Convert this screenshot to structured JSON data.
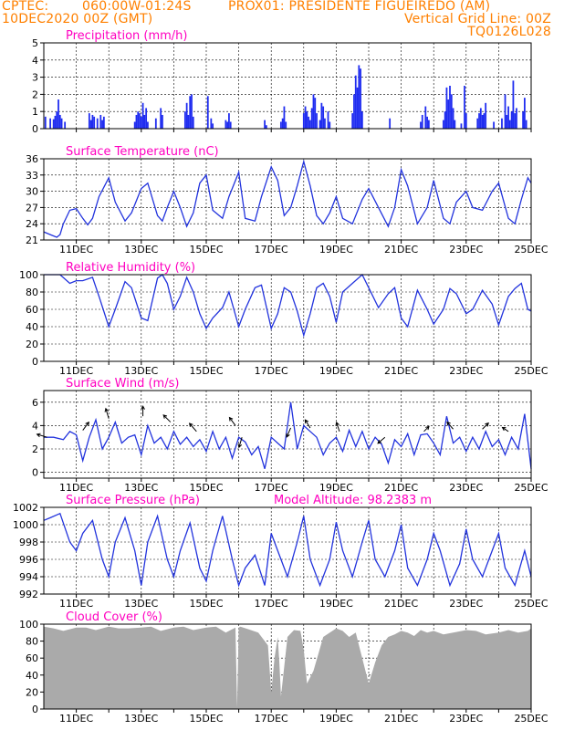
{
  "header": {
    "line1_left": "CPTEC:",
    "line1_coord": "060:00W-01:24S",
    "line1_station": "PROX01: PRESIDENTE FIGUEIREDO (AM)",
    "line2_left": "10DEC2020 00Z (GMT)",
    "line2_right": "Vertical Grid Line: 00Z",
    "line3_right": "TQ0126L028"
  },
  "colors": {
    "header": "#ff8000",
    "title": "#ff00c0",
    "series": "#2233dd",
    "precip_bar": "#1f2cf0",
    "cloud_fill": "#aaaaaa"
  },
  "chart_data": [
    {
      "id": "precip",
      "type": "bar",
      "title": "Precipitation (mm/h)",
      "ylim": [
        0,
        5
      ],
      "yticks": [
        "0",
        "1",
        "2",
        "3",
        "4",
        "5"
      ],
      "xlabels": [],
      "bars": [
        [
          0.05,
          0.7
        ],
        [
          0.2,
          0.6
        ],
        [
          0.3,
          0.55
        ],
        [
          0.35,
          0.75
        ],
        [
          0.4,
          1.0
        ],
        [
          0.45,
          1.7
        ],
        [
          0.5,
          0.8
        ],
        [
          0.55,
          0.6
        ],
        [
          0.65,
          0.4
        ],
        [
          1.4,
          0.9
        ],
        [
          1.45,
          0.5
        ],
        [
          1.5,
          0.8
        ],
        [
          1.55,
          0.7
        ],
        [
          1.65,
          0.6
        ],
        [
          1.75,
          0.8
        ],
        [
          1.8,
          0.5
        ],
        [
          1.85,
          0.7
        ],
        [
          2.8,
          0.4
        ],
        [
          2.85,
          0.8
        ],
        [
          2.9,
          1.0
        ],
        [
          2.95,
          0.9
        ],
        [
          3.0,
          0.7
        ],
        [
          3.05,
          1.5
        ],
        [
          3.1,
          0.8
        ],
        [
          3.15,
          1.2
        ],
        [
          3.2,
          0.4
        ],
        [
          3.45,
          0.6
        ],
        [
          3.6,
          1.2
        ],
        [
          3.65,
          0.8
        ],
        [
          4.35,
          1.0
        ],
        [
          4.4,
          1.5
        ],
        [
          4.45,
          0.8
        ],
        [
          4.5,
          1.9
        ],
        [
          4.55,
          2.0
        ],
        [
          4.6,
          0.7
        ],
        [
          5.05,
          1.9
        ],
        [
          5.15,
          0.6
        ],
        [
          5.2,
          0.3
        ],
        [
          5.6,
          0.5
        ],
        [
          5.65,
          0.4
        ],
        [
          5.7,
          0.9
        ],
        [
          5.75,
          0.4
        ],
        [
          6.8,
          0.5
        ],
        [
          6.85,
          0.2
        ],
        [
          7.3,
          0.4
        ],
        [
          7.35,
          0.6
        ],
        [
          7.4,
          1.3
        ],
        [
          7.45,
          0.4
        ],
        [
          8.0,
          0.9
        ],
        [
          8.05,
          1.3
        ],
        [
          8.1,
          1.0
        ],
        [
          8.15,
          0.7
        ],
        [
          8.2,
          0.5
        ],
        [
          8.25,
          1.2
        ],
        [
          8.3,
          2.0
        ],
        [
          8.35,
          1.8
        ],
        [
          8.4,
          0.9
        ],
        [
          8.5,
          0.5
        ],
        [
          8.55,
          1.5
        ],
        [
          8.6,
          1.3
        ],
        [
          8.65,
          0.6
        ],
        [
          8.75,
          1.0
        ],
        [
          8.8,
          0.4
        ],
        [
          9.5,
          0.9
        ],
        [
          9.55,
          2.0
        ],
        [
          9.6,
          3.1
        ],
        [
          9.65,
          2.4
        ],
        [
          9.7,
          3.7
        ],
        [
          9.75,
          3.5
        ],
        [
          9.8,
          1.0
        ],
        [
          10.65,
          0.6
        ],
        [
          11.6,
          0.4
        ],
        [
          11.65,
          0.8
        ],
        [
          11.75,
          1.3
        ],
        [
          11.8,
          0.7
        ],
        [
          11.85,
          0.5
        ],
        [
          12.3,
          0.5
        ],
        [
          12.35,
          1.0
        ],
        [
          12.4,
          2.4
        ],
        [
          12.45,
          1.7
        ],
        [
          12.5,
          2.5
        ],
        [
          12.55,
          2.0
        ],
        [
          12.6,
          1.2
        ],
        [
          12.65,
          0.5
        ],
        [
          12.85,
          0.3
        ],
        [
          12.95,
          2.5
        ],
        [
          13.0,
          0.9
        ],
        [
          13.35,
          0.6
        ],
        [
          13.4,
          0.9
        ],
        [
          13.45,
          1.2
        ],
        [
          13.5,
          0.8
        ],
        [
          13.55,
          0.9
        ],
        [
          13.6,
          1.5
        ],
        [
          13.85,
          0.4
        ],
        [
          14.1,
          0.6
        ],
        [
          14.2,
          2.0
        ],
        [
          14.25,
          0.8
        ],
        [
          14.3,
          1.3
        ],
        [
          14.35,
          0.5
        ],
        [
          14.4,
          1.0
        ],
        [
          14.45,
          2.8
        ],
        [
          14.5,
          0.9
        ],
        [
          14.55,
          1.2
        ],
        [
          14.75,
          1.0
        ],
        [
          14.8,
          1.8
        ],
        [
          14.85,
          0.5
        ]
      ]
    },
    {
      "id": "temp",
      "type": "line",
      "title": "Surface Temperature (nC)",
      "ylim": [
        21,
        36
      ],
      "yticks": [
        "21",
        "24",
        "27",
        "30",
        "33",
        "36"
      ],
      "xlabels": [
        "11DEC",
        "13DEC",
        "15DEC",
        "17DEC",
        "19DEC",
        "21DEC",
        "23DEC",
        "25DEC"
      ],
      "x": [
        0,
        0.2,
        0.4,
        0.5,
        0.6,
        0.8,
        1.0,
        1.2,
        1.35,
        1.5,
        1.7,
        2.0,
        2.2,
        2.5,
        2.7,
        3.0,
        3.2,
        3.5,
        3.65,
        3.8,
        4.0,
        4.2,
        4.4,
        4.6,
        4.8,
        5.0,
        5.2,
        5.5,
        5.7,
        6.0,
        6.2,
        6.5,
        6.7,
        7.0,
        7.2,
        7.4,
        7.6,
        7.8,
        8.0,
        8.2,
        8.4,
        8.6,
        8.8,
        9.0,
        9.2,
        9.5,
        9.8,
        10.0,
        10.3,
        10.6,
        10.8,
        11.0,
        11.2,
        11.5,
        11.8,
        12.0,
        12.3,
        12.5,
        12.7,
        13.0,
        13.2,
        13.5,
        13.8,
        14.0,
        14.3,
        14.5,
        14.7,
        14.9,
        15.0
      ],
      "values": [
        22.5,
        22,
        21.5,
        22,
        24,
        26.5,
        26.8,
        25,
        23.8,
        25,
        29,
        32.5,
        28,
        24.5,
        26,
        30.5,
        31.5,
        25.5,
        24.5,
        27,
        30,
        27,
        23.5,
        26,
        31.5,
        33,
        26.5,
        25,
        29,
        33.5,
        25,
        24.5,
        29,
        34.5,
        32,
        25.5,
        27,
        31,
        35.5,
        31,
        25.5,
        24,
        26,
        29,
        25,
        24,
        28.5,
        30.5,
        27,
        23.5,
        27,
        34,
        31,
        24,
        27,
        32,
        25,
        24,
        28,
        30,
        27,
        26.5,
        30,
        31.5,
        25,
        24,
        28.5,
        32.5,
        31.5
      ]
    },
    {
      "id": "rh",
      "type": "line",
      "title": "Relative Humidity (%)",
      "ylim": [
        0,
        100
      ],
      "yticks": [
        "0",
        "20",
        "40",
        "60",
        "80",
        "100"
      ],
      "xlabels": [
        "11DEC",
        "13DEC",
        "15DEC",
        "17DEC",
        "19DEC",
        "21DEC",
        "23DEC",
        "25DEC"
      ],
      "x": [
        0,
        0.5,
        0.8,
        1.0,
        1.2,
        1.5,
        1.7,
        2.0,
        2.2,
        2.5,
        2.7,
        3.0,
        3.2,
        3.5,
        3.65,
        3.8,
        4.0,
        4.2,
        4.4,
        4.6,
        4.8,
        5.0,
        5.2,
        5.5,
        5.7,
        6.0,
        6.2,
        6.5,
        6.7,
        7.0,
        7.2,
        7.4,
        7.6,
        7.8,
        8.0,
        8.2,
        8.4,
        8.6,
        8.8,
        9.0,
        9.2,
        9.5,
        9.8,
        10.0,
        10.3,
        10.6,
        10.8,
        11.0,
        11.2,
        11.5,
        11.8,
        12.0,
        12.3,
        12.5,
        12.7,
        13.0,
        13.2,
        13.5,
        13.8,
        14.0,
        14.3,
        14.5,
        14.7,
        14.9,
        15.0
      ],
      "values": [
        100,
        100,
        90,
        93,
        93,
        97,
        75,
        40,
        60,
        92,
        85,
        50,
        47,
        96,
        100,
        90,
        60,
        75,
        97,
        80,
        55,
        38,
        50,
        62,
        80,
        40,
        60,
        85,
        88,
        38,
        55,
        85,
        80,
        58,
        30,
        55,
        85,
        90,
        75,
        45,
        80,
        90,
        100,
        85,
        62,
        78,
        85,
        50,
        40,
        82,
        60,
        43,
        60,
        84,
        78,
        55,
        60,
        82,
        66,
        42,
        75,
        84,
        90,
        60,
        58
      ]
    },
    {
      "id": "wind",
      "type": "line",
      "title": "Surface Wind (m/s)",
      "ylim": [
        -0.5,
        7
      ],
      "yticks": [
        "0",
        "2",
        "4",
        "6"
      ],
      "xlabels": [
        "11DEC",
        "13DEC",
        "15DEC",
        "17DEC",
        "19DEC",
        "21DEC",
        "23DEC",
        "25DEC"
      ],
      "x": [
        0,
        0.3,
        0.6,
        0.8,
        1.0,
        1.2,
        1.4,
        1.6,
        1.8,
        2.0,
        2.2,
        2.4,
        2.6,
        2.8,
        3.0,
        3.2,
        3.4,
        3.6,
        3.8,
        4.0,
        4.2,
        4.4,
        4.6,
        4.8,
        5.0,
        5.2,
        5.4,
        5.6,
        5.8,
        6.0,
        6.2,
        6.4,
        6.6,
        6.8,
        7.0,
        7.2,
        7.4,
        7.6,
        7.8,
        8.0,
        8.2,
        8.4,
        8.6,
        8.8,
        9.0,
        9.2,
        9.4,
        9.6,
        9.8,
        10.0,
        10.2,
        10.4,
        10.6,
        10.8,
        11.0,
        11.2,
        11.4,
        11.6,
        11.8,
        12.0,
        12.2,
        12.4,
        12.6,
        12.8,
        13.0,
        13.2,
        13.4,
        13.6,
        13.8,
        14.0,
        14.2,
        14.4,
        14.6,
        14.8,
        15.0
      ],
      "values": [
        3,
        3,
        2.8,
        3.5,
        3.2,
        1,
        3,
        4.5,
        2,
        3,
        4.3,
        2.5,
        3,
        3.2,
        1.5,
        4,
        2.5,
        3,
        2,
        3.5,
        2.4,
        3,
        2.2,
        2.8,
        1.8,
        3.5,
        2,
        3,
        1.2,
        3,
        2.6,
        1.5,
        2.2,
        0.3,
        3,
        2.5,
        2,
        6,
        2,
        4,
        3.5,
        3,
        1.5,
        2.5,
        3,
        1.8,
        3.6,
        2.2,
        3.5,
        2,
        3,
        2.4,
        0.8,
        2.8,
        2.2,
        3.3,
        1.5,
        3.2,
        3.3,
        2.5,
        1.5,
        4.8,
        2.5,
        3,
        1.8,
        3,
        2,
        3.5,
        2.2,
        2.8,
        1.5,
        3,
        2,
        5,
        0.3
      ],
      "arrows": [
        [
          0.1,
          3,
          -1,
          0.3
        ],
        [
          1.2,
          3.6,
          0.6,
          0.8
        ],
        [
          2.0,
          4.6,
          -0.3,
          1
        ],
        [
          3.05,
          4.8,
          0,
          1
        ],
        [
          3.9,
          4.3,
          -0.7,
          0.7
        ],
        [
          4.7,
          3.5,
          -0.7,
          0.8
        ],
        [
          5.9,
          4,
          -0.6,
          0.8
        ],
        [
          6.1,
          3,
          -0.3,
          -1
        ],
        [
          7.6,
          3.8,
          -0.4,
          -0.9
        ],
        [
          8.2,
          3.8,
          -0.5,
          0.8
        ],
        [
          9.1,
          3.5,
          -0.3,
          0.9
        ],
        [
          10.5,
          3,
          -0.7,
          -0.6
        ],
        [
          11.7,
          3.5,
          0.5,
          0.5
        ],
        [
          12.6,
          3.7,
          -0.6,
          0.7
        ],
        [
          13.5,
          3.7,
          0.6,
          0.6
        ],
        [
          14.3,
          3.5,
          -0.6,
          0.4
        ]
      ]
    },
    {
      "id": "pres",
      "type": "line",
      "title": "Surface Pressure (hPa)",
      "title2": "Model Altitude: 98.2383 m",
      "ylim": [
        992,
        1002
      ],
      "yticks": [
        "992",
        "994",
        "996",
        "998",
        "1000",
        "1002"
      ],
      "xlabels": [
        "11DEC",
        "13DEC",
        "15DEC",
        "17DEC",
        "19DEC",
        "21DEC",
        "23DEC",
        "25DEC"
      ],
      "x": [
        0,
        0.2,
        0.5,
        0.8,
        1.0,
        1.2,
        1.5,
        1.8,
        2.0,
        2.2,
        2.5,
        2.8,
        3.0,
        3.2,
        3.5,
        3.8,
        4.0,
        4.2,
        4.5,
        4.8,
        5.0,
        5.2,
        5.5,
        5.8,
        6.0,
        6.2,
        6.5,
        6.8,
        7.0,
        7.2,
        7.5,
        7.8,
        8.0,
        8.2,
        8.5,
        8.8,
        9.0,
        9.2,
        9.5,
        9.8,
        10.0,
        10.2,
        10.5,
        10.8,
        11.0,
        11.2,
        11.5,
        11.8,
        12.0,
        12.2,
        12.5,
        12.8,
        13.0,
        13.2,
        13.5,
        13.8,
        14.0,
        14.2,
        14.5,
        14.8,
        15.0
      ],
      "values": [
        1000.5,
        1000.8,
        1001.3,
        998,
        997,
        999,
        1000.5,
        996,
        994,
        998,
        1000.8,
        997,
        993,
        998,
        1001,
        996,
        994,
        997,
        1000.2,
        995,
        993.5,
        997,
        1001,
        996,
        993,
        995,
        996.5,
        993,
        999,
        997,
        994,
        998,
        1001,
        996,
        993,
        996,
        1000.3,
        997,
        994,
        998,
        1000.5,
        996,
        994,
        997,
        1000,
        995,
        993,
        996,
        999,
        997,
        993,
        995.5,
        999.5,
        996,
        994,
        997,
        999,
        995,
        993,
        997,
        994
      ]
    },
    {
      "id": "cloud",
      "type": "area",
      "title": "Cloud Cover (%)",
      "ylim": [
        0,
        100
      ],
      "yticks": [
        "0",
        "20",
        "40",
        "60",
        "80",
        "100"
      ],
      "xlabels": [
        "11DEC",
        "13DEC",
        "15DEC",
        "17DEC",
        "19DEC",
        "21DEC",
        "23DEC",
        "25DEC"
      ],
      "x": [
        0,
        0.3,
        0.6,
        1.0,
        1.3,
        1.6,
        2.0,
        2.3,
        2.6,
        3.0,
        3.3,
        3.6,
        4.0,
        4.3,
        4.6,
        5.0,
        5.3,
        5.6,
        5.9,
        5.95,
        6.0,
        6.05,
        6.3,
        6.6,
        6.9,
        7.0,
        7.1,
        7.2,
        7.25,
        7.3,
        7.5,
        7.7,
        7.9,
        8.0,
        8.1,
        8.3,
        8.6,
        9.0,
        9.2,
        9.4,
        9.6,
        9.8,
        10.0,
        10.2,
        10.4,
        10.6,
        10.8,
        11.0,
        11.2,
        11.4,
        11.6,
        11.8,
        12.0,
        12.3,
        12.6,
        13.0,
        13.3,
        13.6,
        14.0,
        14.3,
        14.6,
        14.9,
        15.0
      ],
      "values": [
        97,
        95,
        92,
        96,
        96,
        93,
        97,
        95,
        95,
        96,
        97,
        92,
        96,
        97,
        93,
        96,
        97,
        90,
        96,
        2,
        96,
        97,
        94,
        90,
        75,
        20,
        60,
        85,
        55,
        15,
        85,
        93,
        92,
        70,
        30,
        45,
        85,
        95,
        92,
        85,
        90,
        60,
        30,
        55,
        75,
        85,
        88,
        92,
        90,
        86,
        93,
        90,
        92,
        88,
        90,
        93,
        92,
        88,
        90,
        93,
        90,
        92,
        95
      ]
    }
  ]
}
